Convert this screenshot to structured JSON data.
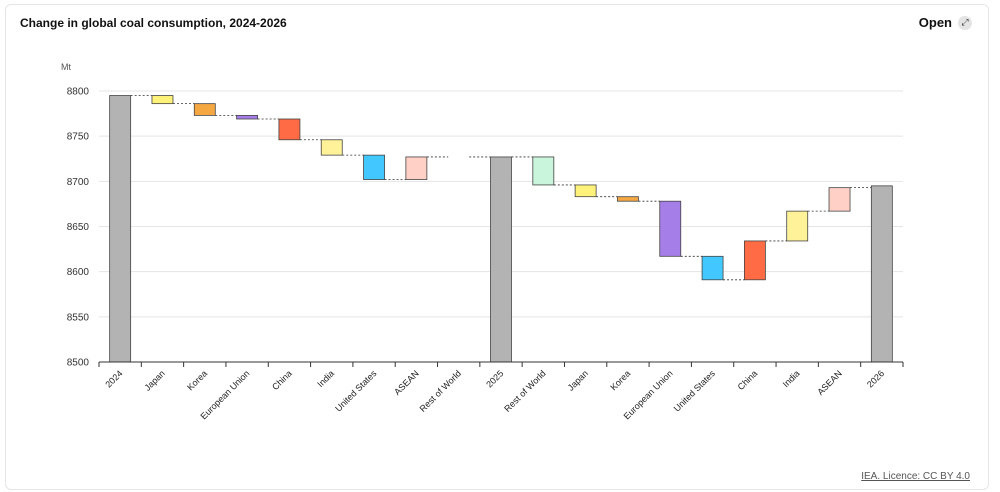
{
  "header": {
    "title": "Change in global coal consumption, 2024-2026",
    "open_label": "Open",
    "open_icon": "expand-icon"
  },
  "footer": {
    "licence": "IEA. Licence: CC BY 4.0"
  },
  "colors": {
    "total": "#b3b3b3",
    "Japan": "#fff27a",
    "Korea": "#f5a742",
    "European Union": "#a57ee8",
    "China": "#ff6b45",
    "India": "#fff299",
    "United States": "#42c8ff",
    "ASEAN": "#ffd0c6",
    "Rest of World": "#c9f5dc"
  },
  "chart_data": {
    "type": "waterfall",
    "title": "Change in global coal consumption, 2024-2026",
    "ylabel": "Mt",
    "ylim": [
      8500,
      8800
    ],
    "yticks": [
      8500,
      8550,
      8600,
      8650,
      8700,
      8750,
      8800
    ],
    "grid": true,
    "categories": [
      "2024",
      "Japan",
      "Korea",
      "European Union",
      "China",
      "India",
      "United States",
      "ASEAN",
      "Rest of World",
      "2025",
      "Rest of World",
      "Japan",
      "Korea",
      "European Union",
      "United States",
      "China",
      "India",
      "ASEAN",
      "2026"
    ],
    "bars": [
      {
        "label": "2024",
        "kind": "total",
        "value": 8795
      },
      {
        "label": "Japan",
        "kind": "delta",
        "value": -9
      },
      {
        "label": "Korea",
        "kind": "delta",
        "value": -13
      },
      {
        "label": "European Union",
        "kind": "delta",
        "value": -4
      },
      {
        "label": "China",
        "kind": "delta",
        "value": -23
      },
      {
        "label": "India",
        "kind": "delta",
        "value": -17
      },
      {
        "label": "United States",
        "kind": "delta",
        "value": -27
      },
      {
        "label": "ASEAN",
        "kind": "delta",
        "value": 25
      },
      {
        "label": "Rest of World",
        "kind": "delta",
        "value": 0
      },
      {
        "label": "2025",
        "kind": "total",
        "value": 8727
      },
      {
        "label": "Rest of World",
        "kind": "delta",
        "value": -31
      },
      {
        "label": "Japan",
        "kind": "delta",
        "value": -13
      },
      {
        "label": "Korea",
        "kind": "delta",
        "value": -5
      },
      {
        "label": "European Union",
        "kind": "delta",
        "value": -61
      },
      {
        "label": "United States",
        "kind": "delta",
        "value": -26
      },
      {
        "label": "China",
        "kind": "delta",
        "value": 43
      },
      {
        "label": "India",
        "kind": "delta",
        "value": 33
      },
      {
        "label": "ASEAN",
        "kind": "delta",
        "value": 26
      },
      {
        "label": "2026",
        "kind": "total",
        "value": 8695
      }
    ]
  }
}
